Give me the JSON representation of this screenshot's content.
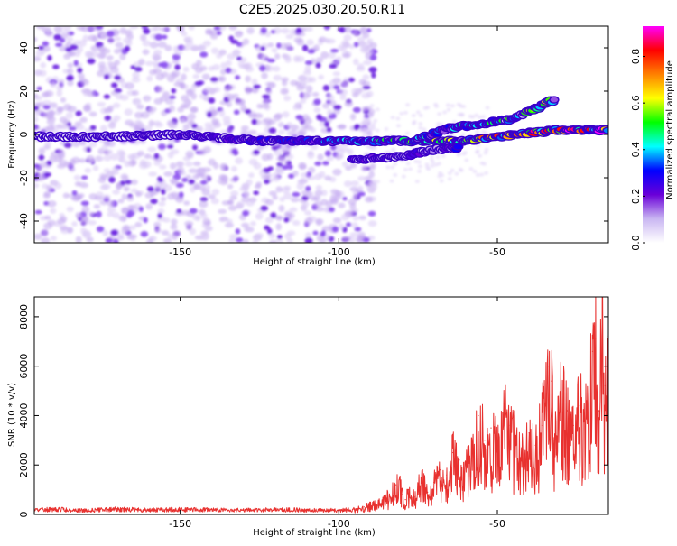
{
  "figure_title": "C2E5.2025.030.20.50.R11",
  "chart_data": [
    {
      "type": "heatmap",
      "title": "C2E5.2025.030.20.50.R11",
      "xlabel": "Height of straight line (km)",
      "ylabel": "Frequency (Hz)",
      "xlim": [
        -196,
        -15
      ],
      "ylim": [
        -50,
        50
      ],
      "xticks": [
        -150,
        -100,
        -50
      ],
      "yticks": [
        -40,
        -20,
        0,
        20,
        40
      ],
      "colorbar": {
        "label": "Normalized spectral amplitude",
        "range": [
          0,
          0.93
        ],
        "ticks": [
          0.0,
          0.2,
          0.4,
          0.6,
          0.8
        ],
        "colormap": [
          "#ffffff",
          "#c9b6f2",
          "#6a00d8",
          "#0000ff",
          "#00ffff",
          "#00ff00",
          "#ffff00",
          "#ff8000",
          "#ff0000",
          "#ff00ff"
        ]
      },
      "noise_region": {
        "x": [
          -196,
          -93
        ],
        "y": [
          -50,
          50
        ],
        "level": 0.08
      },
      "ridges": [
        {
          "name": "lower branch",
          "points": [
            [
              -196,
              -1
            ],
            [
              -170,
              -1
            ],
            [
              -150,
              0
            ],
            [
              -125,
              -3
            ],
            [
              -100,
              -3
            ],
            [
              -80,
              -3
            ],
            [
              -60,
              -3
            ],
            [
              -45,
              0
            ],
            [
              -30,
              2
            ],
            [
              -15,
              2
            ]
          ],
          "peak": 0.9
        },
        {
          "name": "upper branch",
          "points": [
            [
              -75,
              -2
            ],
            [
              -65,
              3
            ],
            [
              -55,
              5
            ],
            [
              -45,
              7
            ],
            [
              -32,
              16
            ]
          ],
          "peak": 0.65
        },
        {
          "name": "side branch",
          "points": [
            [
              -96,
              -12
            ],
            [
              -80,
              -10
            ],
            [
              -70,
              -7
            ],
            [
              -62,
              -6
            ]
          ],
          "peak": 0.4
        }
      ]
    },
    {
      "type": "line",
      "xlabel": "Height of straight line (km)",
      "ylabel": "SNR (10 * v/v)",
      "xlim": [
        -196,
        -15
      ],
      "ylim": [
        0,
        8800
      ],
      "xticks": [
        -150,
        -100,
        -50
      ],
      "yticks": [
        0,
        2000,
        4000,
        6000,
        8000
      ],
      "color": "#e8312f",
      "series": [
        {
          "x": [
            -196,
            -190,
            -180,
            -170,
            -160,
            -150,
            -140,
            -130,
            -120,
            -110,
            -100,
            -95,
            -92,
            -90,
            -88,
            -86,
            -84,
            -82,
            -81,
            -80,
            -79,
            -78,
            -76,
            -74,
            -72,
            -70,
            -68,
            -66,
            -64,
            -62,
            -60,
            -58,
            -56,
            -54,
            -52,
            -50,
            -48,
            -46,
            -44,
            -42,
            -40,
            -38,
            -36,
            -34,
            -33,
            -32,
            -30,
            -28,
            -26,
            -24,
            -22,
            -20,
            -19,
            -18,
            -17,
            -16,
            -15
          ],
          "y": [
            200,
            220,
            180,
            230,
            190,
            220,
            200,
            190,
            210,
            190,
            180,
            220,
            300,
            450,
            400,
            600,
            800,
            1200,
            1400,
            800,
            600,
            1000,
            700,
            1500,
            900,
            1300,
            1800,
            1600,
            2500,
            2200,
            2000,
            2700,
            4000,
            3000,
            3500,
            2800,
            4200,
            3600,
            3000,
            2600,
            3300,
            2800,
            3600,
            6000,
            5400,
            3000,
            4800,
            4200,
            3600,
            4400,
            3900,
            6600,
            7100,
            4200,
            8800,
            5200,
            7200
          ]
        }
      ]
    }
  ]
}
